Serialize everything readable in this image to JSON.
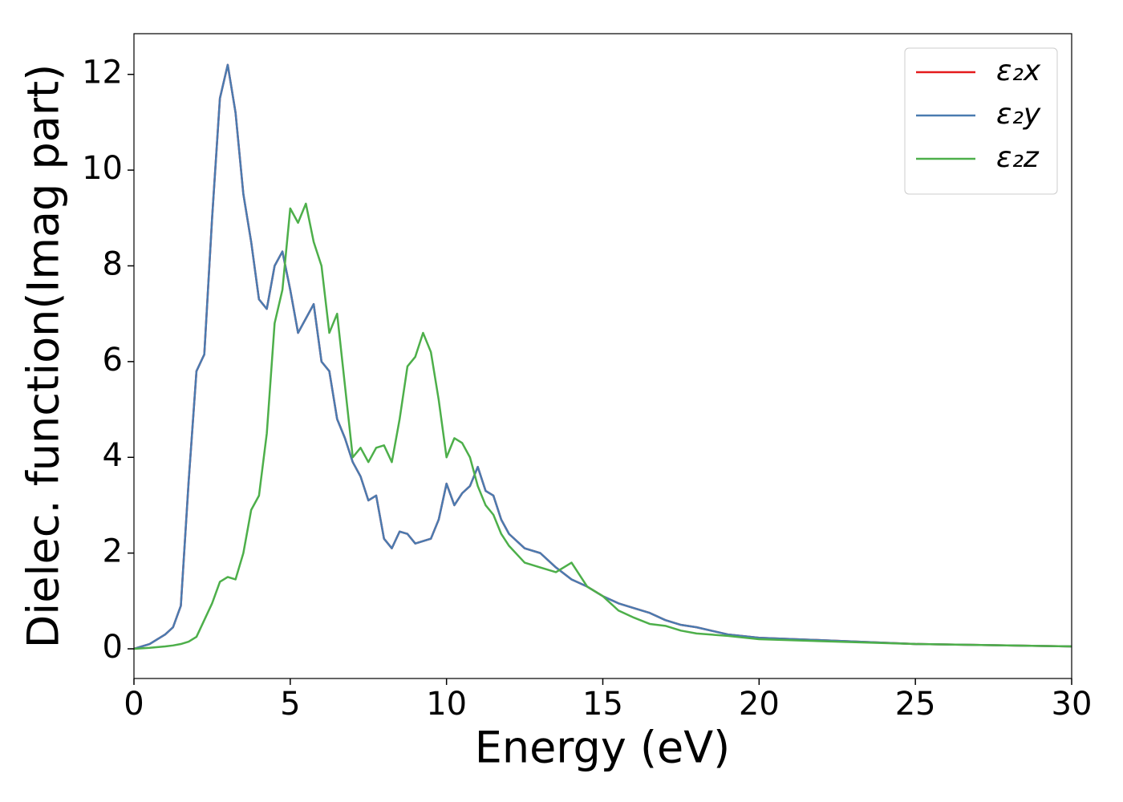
{
  "chart_data": {
    "type": "line",
    "x_label": "Energy (eV)",
    "y_label": "Dielec. function(Imag part)",
    "x": [
      0,
      0.5,
      1,
      1.25,
      1.5,
      1.75,
      2,
      2.25,
      2.5,
      2.75,
      3,
      3.25,
      3.5,
      3.75,
      4,
      4.25,
      4.5,
      4.75,
      5,
      5.25,
      5.5,
      5.75,
      6,
      6.25,
      6.5,
      6.75,
      7,
      7.25,
      7.5,
      7.75,
      8,
      8.25,
      8.5,
      8.75,
      9,
      9.25,
      9.5,
      9.75,
      10,
      10.25,
      10.5,
      10.75,
      11,
      11.25,
      11.5,
      11.75,
      12,
      12.5,
      13,
      13.5,
      14,
      14.5,
      15,
      15.5,
      16,
      16.5,
      17,
      17.5,
      18,
      19,
      20,
      22,
      25,
      30
    ],
    "series": [
      {
        "name": "ε₂x",
        "color": "#e41a1c",
        "values": [
          0,
          0.1,
          0.3,
          0.45,
          0.9,
          3.5,
          5.8,
          6.15,
          9.0,
          11.5,
          12.2,
          11.2,
          9.5,
          8.5,
          7.3,
          7.1,
          8.0,
          8.3,
          7.5,
          6.6,
          6.9,
          7.2,
          6.0,
          5.8,
          4.8,
          4.4,
          3.9,
          3.6,
          3.1,
          3.2,
          2.3,
          2.1,
          2.45,
          2.4,
          2.2,
          2.25,
          2.3,
          2.7,
          3.45,
          3.0,
          3.25,
          3.4,
          3.8,
          3.3,
          3.2,
          2.7,
          2.4,
          2.1,
          2.0,
          1.7,
          1.45,
          1.3,
          1.1,
          0.95,
          0.85,
          0.75,
          0.6,
          0.5,
          0.45,
          0.3,
          0.23,
          0.18,
          0.1,
          0.05
        ]
      },
      {
        "name": "ε₂y",
        "color": "#4a7bb0",
        "values": [
          0,
          0.1,
          0.3,
          0.45,
          0.9,
          3.5,
          5.8,
          6.15,
          9.0,
          11.5,
          12.2,
          11.2,
          9.5,
          8.5,
          7.3,
          7.1,
          8.0,
          8.3,
          7.5,
          6.6,
          6.9,
          7.2,
          6.0,
          5.8,
          4.8,
          4.4,
          3.9,
          3.6,
          3.1,
          3.2,
          2.3,
          2.1,
          2.45,
          2.4,
          2.2,
          2.25,
          2.3,
          2.7,
          3.45,
          3.0,
          3.25,
          3.4,
          3.8,
          3.3,
          3.2,
          2.7,
          2.4,
          2.1,
          2.0,
          1.7,
          1.45,
          1.3,
          1.1,
          0.95,
          0.85,
          0.75,
          0.6,
          0.5,
          0.45,
          0.3,
          0.23,
          0.18,
          0.1,
          0.05
        ]
      },
      {
        "name": "ε₂z",
        "color": "#4daf4a",
        "values": [
          0,
          0.02,
          0.05,
          0.07,
          0.1,
          0.15,
          0.25,
          0.6,
          0.95,
          1.4,
          1.5,
          1.45,
          2.0,
          2.9,
          3.2,
          4.5,
          6.8,
          7.5,
          9.2,
          8.9,
          9.3,
          8.5,
          8.0,
          6.6,
          7.0,
          5.5,
          4.0,
          4.2,
          3.9,
          4.2,
          4.25,
          3.9,
          4.8,
          5.9,
          6.1,
          6.6,
          6.2,
          5.2,
          4.0,
          4.4,
          4.3,
          4.0,
          3.4,
          3.0,
          2.8,
          2.4,
          2.15,
          1.8,
          1.7,
          1.6,
          1.8,
          1.3,
          1.1,
          0.8,
          0.65,
          0.52,
          0.48,
          0.38,
          0.32,
          0.27,
          0.2,
          0.16,
          0.1,
          0.05
        ]
      }
    ],
    "xlim": [
      0,
      30
    ],
    "xticks": [
      0,
      5,
      10,
      15,
      20,
      25,
      30
    ],
    "ylim": [
      -0.62,
      12.85
    ],
    "yticks": [
      0,
      2,
      4,
      6,
      8,
      10,
      12
    ],
    "grid": false,
    "legend": "upper right"
  }
}
